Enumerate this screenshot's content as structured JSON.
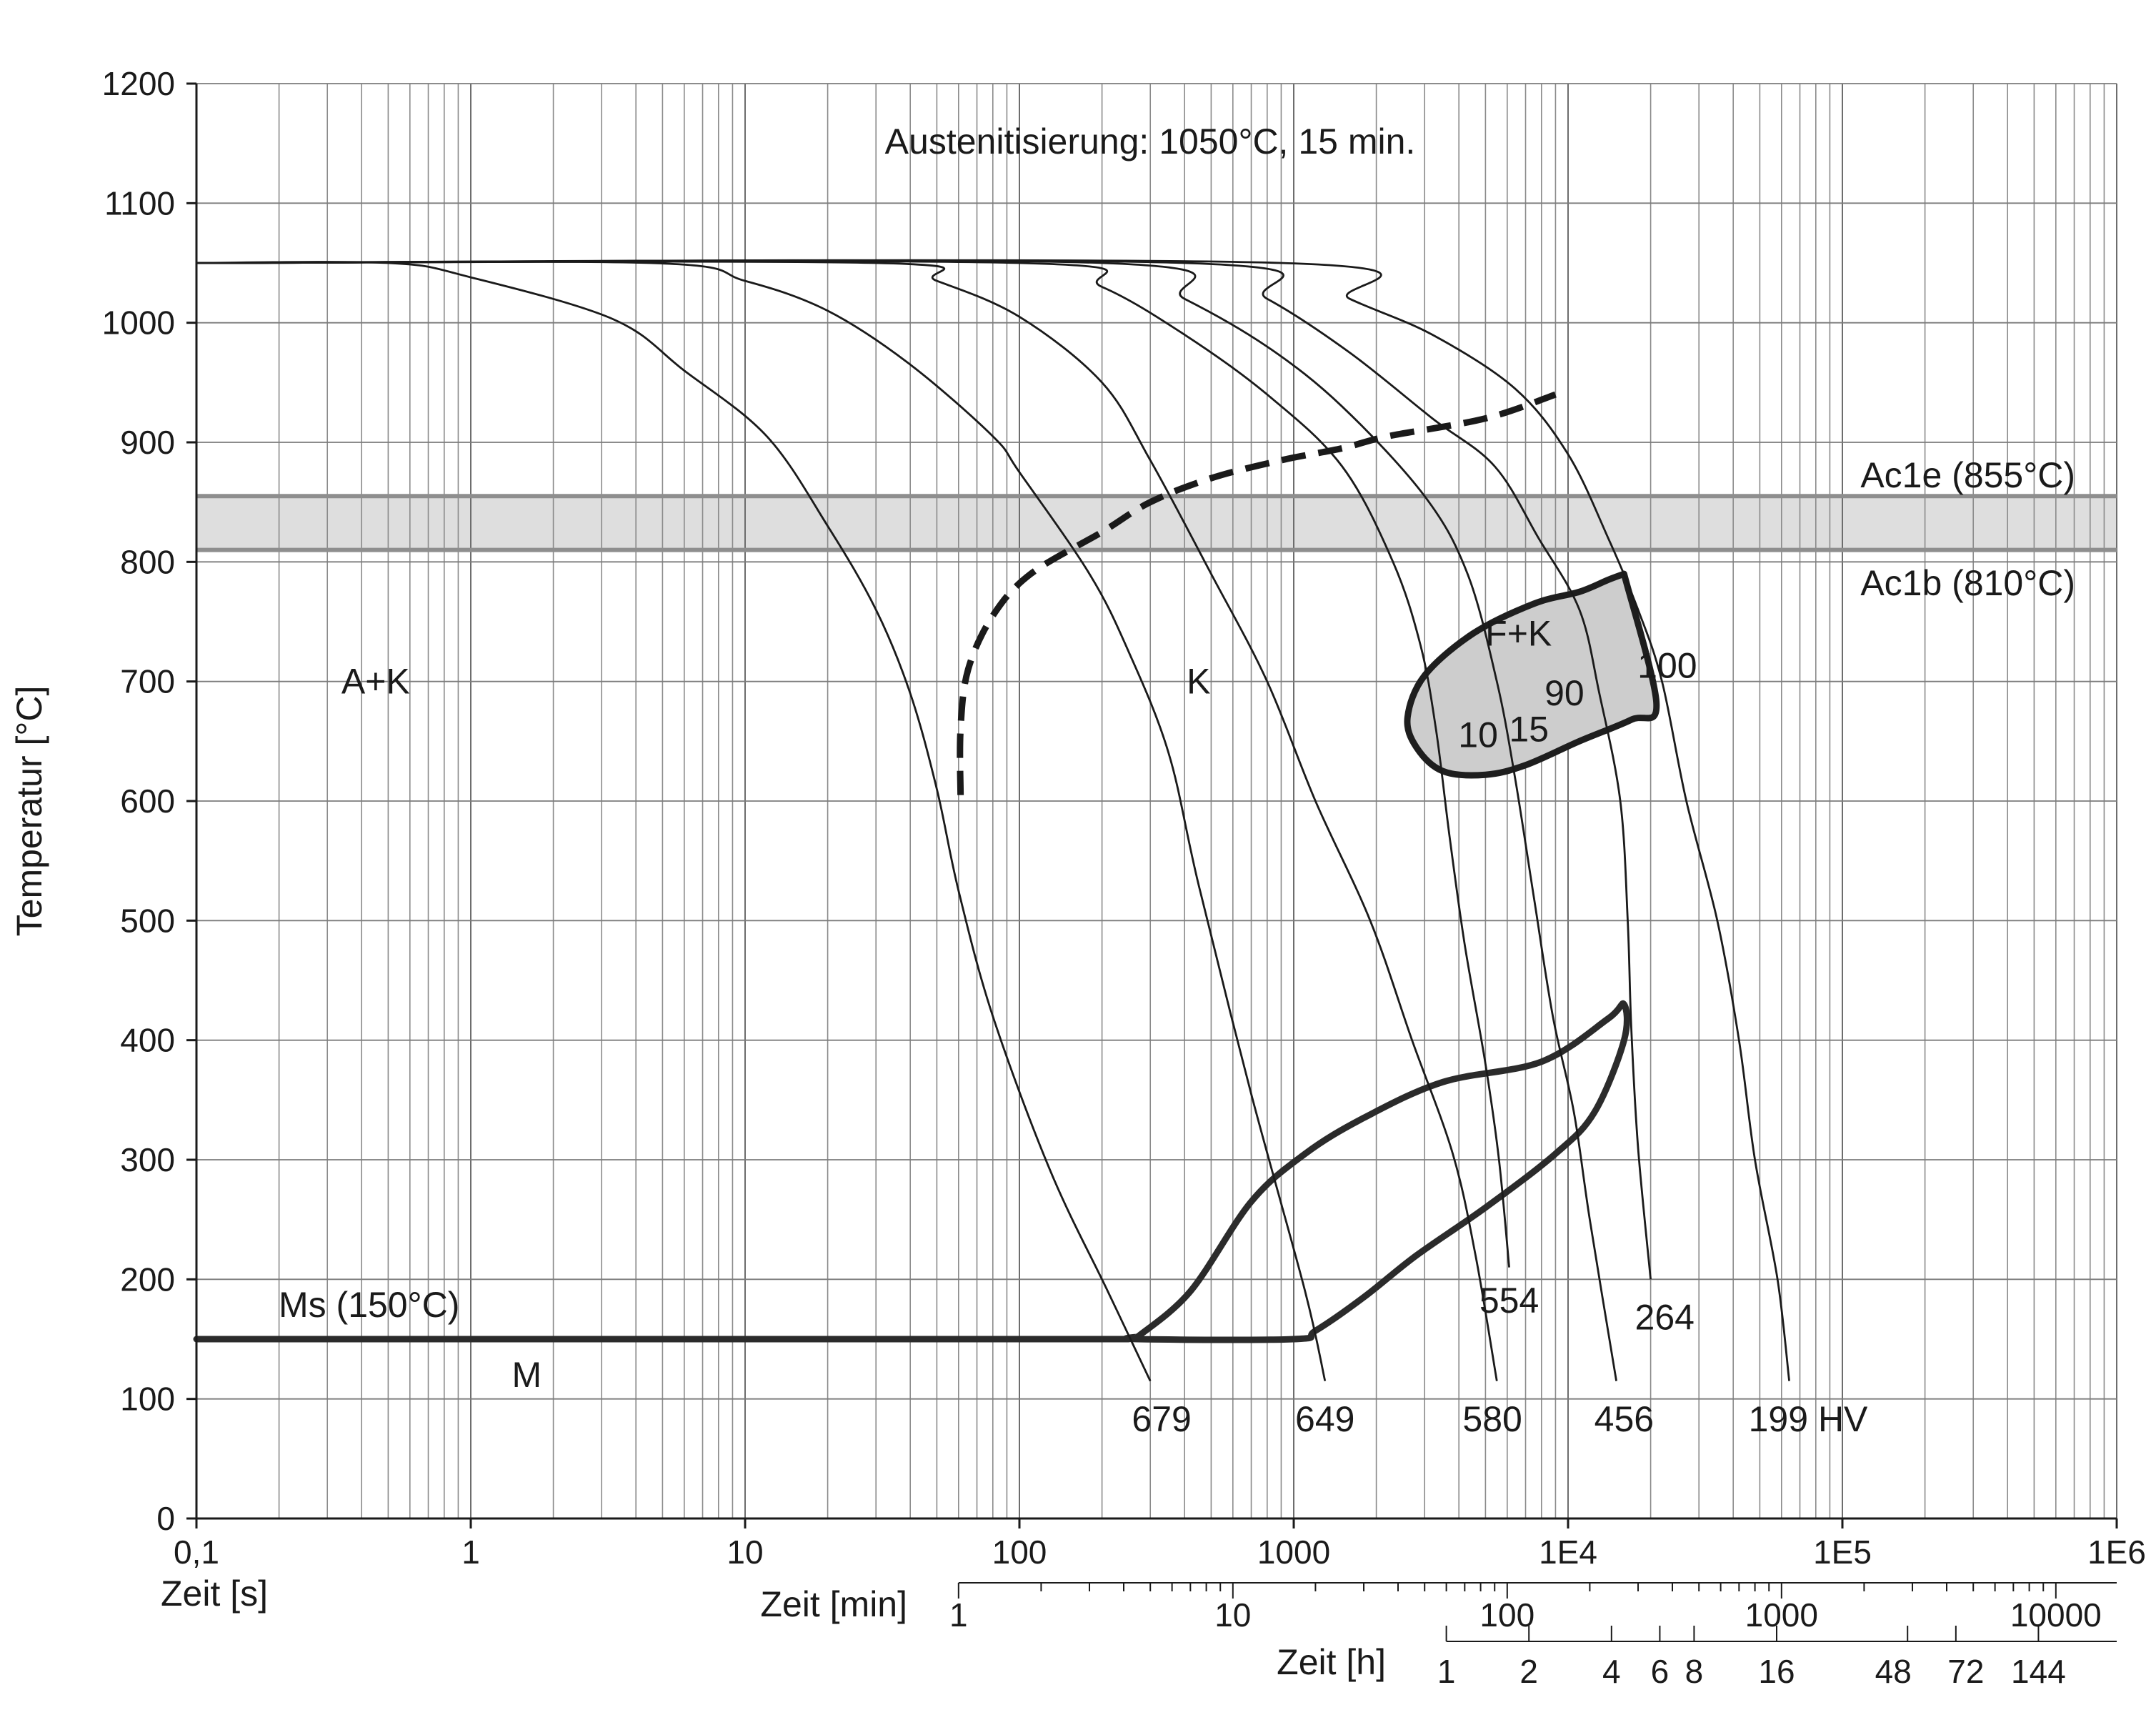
{
  "chart_data": {
    "type": "line",
    "title": "Austenitisierung: 1050°C, 15 min.",
    "ylabel": "Temperatur [°C]",
    "ylim": [
      0,
      1200
    ],
    "yticks": [
      "0",
      "100",
      "200",
      "300",
      "400",
      "500",
      "600",
      "700",
      "800",
      "900",
      "1000",
      "1100",
      "1200"
    ],
    "xscale": "log",
    "xlim": [
      0.1,
      1000000
    ],
    "axes": {
      "seconds": {
        "label": "Zeit [s]",
        "ticks": [
          {
            "v": 0.1,
            "t": "0,1"
          },
          {
            "v": 1,
            "t": "1"
          },
          {
            "v": 10,
            "t": "10"
          },
          {
            "v": 100,
            "t": "100"
          },
          {
            "v": 1000,
            "t": "1000"
          },
          {
            "v": 10000,
            "t": "1E4"
          },
          {
            "v": 100000,
            "t": "1E5"
          },
          {
            "v": 1000000,
            "t": "1E6"
          }
        ]
      },
      "minutes": {
        "label": "Zeit [min]",
        "ticks": [
          {
            "v": 1,
            "t": "1"
          },
          {
            "v": 10,
            "t": "10"
          },
          {
            "v": 100,
            "t": "100"
          },
          {
            "v": 1000,
            "t": "1000"
          },
          {
            "v": 10000,
            "t": "10000"
          }
        ]
      },
      "hours": {
        "label": "Zeit [h]",
        "ticks": [
          {
            "v": 1,
            "t": "1"
          },
          {
            "v": 2,
            "t": "2"
          },
          {
            "v": 4,
            "t": "4"
          },
          {
            "v": 6,
            "t": "6"
          },
          {
            "v": 8,
            "t": "8"
          },
          {
            "v": 16,
            "t": "16"
          },
          {
            "v": 48,
            "t": "48"
          },
          {
            "v": 72,
            "t": "72"
          },
          {
            "v": 144,
            "t": "144"
          }
        ]
      }
    },
    "grid": true,
    "reference_lines": [
      {
        "name": "Ac1e (855°C)",
        "y": 855
      },
      {
        "name": "Ac1b (810°C)",
        "y": 810
      },
      {
        "name": "Ms (150°C)",
        "y": 150
      }
    ],
    "regions": [
      {
        "label": "A+K",
        "x": 0.45,
        "y": 690
      },
      {
        "label": "K",
        "x": 450,
        "y": 690
      },
      {
        "label": "F+K",
        "x": 6600,
        "y": 730
      },
      {
        "label": "M",
        "x": 1.6,
        "y": 110
      }
    ],
    "cooling_curves": [
      {
        "hardness": "679",
        "points": [
          [
            0.1,
            1050
          ],
          [
            0.5,
            1050
          ],
          [
            1,
            1038
          ],
          [
            3.3,
            1003
          ],
          [
            6,
            960
          ],
          [
            12,
            905
          ],
          [
            20,
            830
          ],
          [
            30,
            760
          ],
          [
            40,
            690
          ],
          [
            50,
            610
          ],
          [
            60,
            525
          ],
          [
            80,
            420
          ],
          [
            130,
            290
          ],
          [
            210,
            190
          ],
          [
            300,
            115
          ]
        ]
      },
      {
        "hardness": "649",
        "points": [
          [
            0.1,
            1050
          ],
          [
            4.5,
            1050
          ],
          [
            10,
            1035
          ],
          [
            20,
            1010
          ],
          [
            40,
            965
          ],
          [
            80,
            905
          ],
          [
            100,
            875
          ],
          [
            180,
            790
          ],
          [
            250,
            725
          ],
          [
            350,
            640
          ],
          [
            450,
            530
          ],
          [
            700,
            355
          ],
          [
            1100,
            190
          ],
          [
            1300,
            115
          ]
        ]
      },
      {
        "hardness": "580",
        "points": [
          [
            0.1,
            1050
          ],
          [
            30,
            1050
          ],
          [
            50,
            1035
          ],
          [
            100,
            1005
          ],
          [
            200,
            950
          ],
          [
            300,
            885
          ],
          [
            500,
            790
          ],
          [
            800,
            700
          ],
          [
            1200,
            600
          ],
          [
            1900,
            500
          ],
          [
            2700,
            400
          ],
          [
            3800,
            305
          ],
          [
            4600,
            220
          ],
          [
            5500,
            115
          ]
        ]
      },
      {
        "hardness": "554",
        "points": [
          [
            0.1,
            1050
          ],
          [
            100,
            1050
          ],
          [
            200,
            1030
          ],
          [
            400,
            990
          ],
          [
            800,
            940
          ],
          [
            1500,
            880
          ],
          [
            2300,
            800
          ],
          [
            2900,
            730
          ],
          [
            3300,
            660
          ],
          [
            3700,
            570
          ],
          [
            4200,
            480
          ],
          [
            5000,
            380
          ],
          [
            5600,
            300
          ],
          [
            6100,
            210
          ]
        ]
      },
      {
        "hardness": "456",
        "points": [
          [
            0.1,
            1050
          ],
          [
            200,
            1050
          ],
          [
            400,
            1020
          ],
          [
            800,
            980
          ],
          [
            1500,
            930
          ],
          [
            3000,
            855
          ],
          [
            4300,
            790
          ],
          [
            5500,
            700
          ],
          [
            6400,
            620
          ],
          [
            7500,
            520
          ],
          [
            8800,
            420
          ],
          [
            10500,
            340
          ],
          [
            12000,
            250
          ],
          [
            15000,
            115
          ]
        ]
      },
      {
        "hardness": "264",
        "points": [
          [
            0.1,
            1050
          ],
          [
            400,
            1050
          ],
          [
            800,
            1020
          ],
          [
            1600,
            975
          ],
          [
            3200,
            920
          ],
          [
            5400,
            880
          ],
          [
            7800,
            820
          ],
          [
            11000,
            760
          ],
          [
            13000,
            690
          ],
          [
            15500,
            600
          ],
          [
            16500,
            500
          ],
          [
            17000,
            410
          ],
          [
            18000,
            310
          ],
          [
            20000,
            200
          ]
        ]
      },
      {
        "hardness": "199 HV",
        "points": [
          [
            0.1,
            1050
          ],
          [
            900,
            1050
          ],
          [
            1600,
            1020
          ],
          [
            3200,
            990
          ],
          [
            6400,
            945
          ],
          [
            10000,
            890
          ],
          [
            14000,
            820
          ],
          [
            18000,
            760
          ],
          [
            22000,
            700
          ],
          [
            27000,
            600
          ],
          [
            35000,
            500
          ],
          [
            42000,
            400
          ],
          [
            48000,
            300
          ],
          [
            58000,
            200
          ],
          [
            64000,
            115
          ]
        ]
      }
    ],
    "dashed_curve": [
      [
        61,
        605
      ],
      [
        61,
        660
      ],
      [
        65,
        710
      ],
      [
        80,
        755
      ],
      [
        110,
        790
      ],
      [
        200,
        825
      ],
      [
        300,
        850
      ],
      [
        500,
        870
      ],
      [
        900,
        885
      ],
      [
        1500,
        895
      ],
      [
        2200,
        905
      ],
      [
        5000,
        920
      ],
      [
        9000,
        940
      ]
    ],
    "ms_line": [
      [
        0.1,
        150
      ],
      [
        250,
        150
      ]
    ],
    "fk_region": {
      "points": [
        [
          16000,
          790
        ],
        [
          14000,
          785
        ],
        [
          11000,
          775
        ],
        [
          7500,
          765
        ],
        [
          4500,
          740
        ],
        [
          3000,
          705
        ],
        [
          2600,
          670
        ],
        [
          2800,
          645
        ],
        [
          3500,
          625
        ],
        [
          5000,
          622
        ],
        [
          7000,
          630
        ],
        [
          11000,
          650
        ],
        [
          17000,
          668
        ],
        [
          21000,
          682
        ]
      ],
      "labels": [
        {
          "t": "10",
          "x": 4700,
          "y": 645
        },
        {
          "t": "15",
          "x": 7200,
          "y": 650
        },
        {
          "t": "90",
          "x": 9700,
          "y": 680
        },
        {
          "t": "100",
          "x": 23000,
          "y": 703
        }
      ]
    },
    "bainite_region": {
      "points": [
        [
          270,
          152
        ],
        [
          420,
          190
        ],
        [
          700,
          265
        ],
        [
          1100,
          305
        ],
        [
          1800,
          335
        ],
        [
          3500,
          365
        ],
        [
          8000,
          382
        ],
        [
          14000,
          418
        ],
        [
          16000,
          430
        ],
        [
          16000,
          400
        ],
        [
          12500,
          340
        ],
        [
          9000,
          305
        ],
        [
          5000,
          260
        ],
        [
          2800,
          220
        ],
        [
          1800,
          185
        ],
        [
          1200,
          157
        ],
        [
          1000,
          150
        ],
        [
          270,
          150
        ]
      ]
    },
    "hardness_labels": [
      {
        "t": "679",
        "x": 330,
        "y": 73
      },
      {
        "t": "649",
        "x": 1300,
        "y": 73
      },
      {
        "t": "580",
        "x": 5300,
        "y": 73
      },
      {
        "t": "456",
        "x": 16000,
        "y": 73
      },
      {
        "t": "199 HV",
        "x": 75000,
        "y": 73
      },
      {
        "t": "554",
        "x": 6100,
        "y": 172
      },
      {
        "t": "264",
        "x": 22500,
        "y": 158
      }
    ]
  }
}
